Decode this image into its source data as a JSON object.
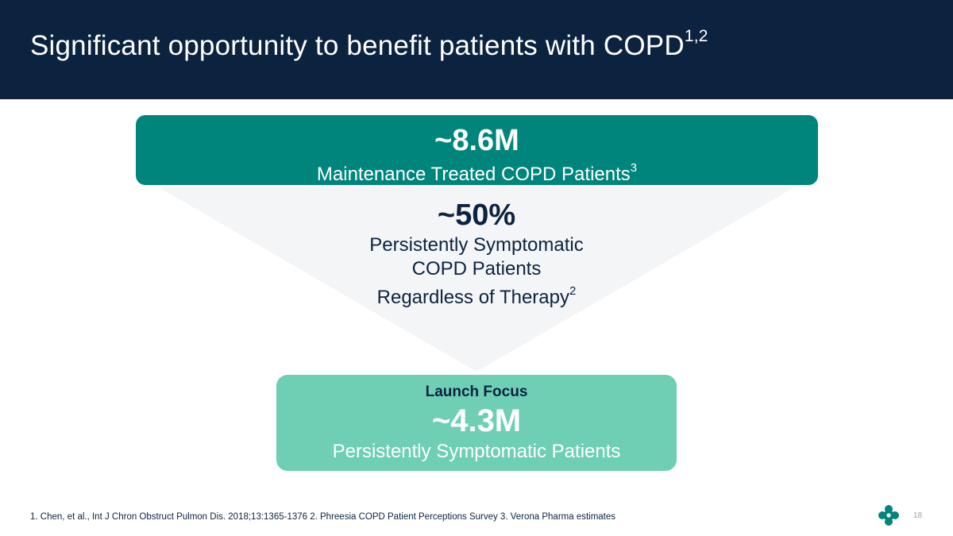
{
  "slide": {
    "title": "Significant opportunity to benefit patients with COPD",
    "title_refs": "1,2",
    "page_number": "18"
  },
  "funnel": {
    "top": {
      "value": "~8.6M",
      "label": "Maintenance Treated COPD Patients",
      "ref": "3"
    },
    "middle": {
      "value": "~50%",
      "lines": [
        "Persistently Symptomatic",
        "COPD Patients",
        "Regardless of Therapy"
      ],
      "ref": "2"
    },
    "bottom": {
      "heading": "Launch Focus",
      "value": "~4.3M",
      "label": "Persistently Symptomatic Patients"
    }
  },
  "footnote": "1. Chen, et al., Int J Chron Obstruct Pulmon Dis. 2018;13:1365-1376  2. Phreesia COPD Patient Perceptions Survey  3. Verona Pharma estimates",
  "colors": {
    "header_bg": "#0c2340",
    "teal": "#00857c",
    "light_teal": "#6ecfb4",
    "funnel_gray": "#f4f5f6",
    "navy_text": "#0c2340"
  }
}
